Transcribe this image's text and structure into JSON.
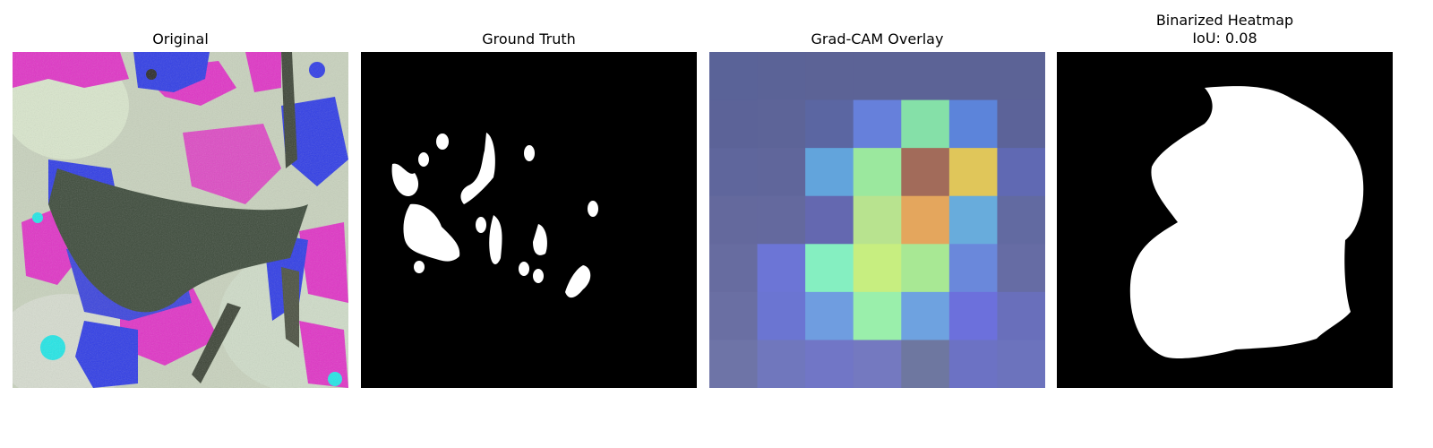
{
  "panels": [
    {
      "title": "Original",
      "icon": "original-image"
    },
    {
      "title": "Ground Truth",
      "icon": "ground-truth-mask"
    },
    {
      "title": "Grad-CAM Overlay",
      "icon": "gradcam-heatmap"
    },
    {
      "title": "Binarized Heatmap",
      "subtitle": "IoU: 0.08",
      "icon": "binarized-mask"
    }
  ],
  "gradcam": {
    "grid_size": 7,
    "cells": [
      [
        "#5a6398",
        "#5b6397",
        "#5c6396",
        "#5c6396",
        "#5c6396",
        "#5c6396",
        "#5c6396"
      ],
      [
        "#5c6398",
        "#5d6498",
        "#5b66a2",
        "#6680db",
        "#85e0a8",
        "#5c84da",
        "#5c6399"
      ],
      [
        "#5f669c",
        "#60669b",
        "#62a4dc",
        "#9be89e",
        "#a26b5a",
        "#e0c65a",
        "#6069b3"
      ],
      [
        "#64699d",
        "#64699e",
        "#6468b0",
        "#b8e38f",
        "#e4a65d",
        "#68acdc",
        "#626aa1"
      ],
      [
        "#676ca0",
        "#6c75d6",
        "#85efc1",
        "#c7ee80",
        "#a8e894",
        "#6a88db",
        "#666ca4"
      ],
      [
        "#6a6fa3",
        "#6b75d2",
        "#6f9de0",
        "#9aefab",
        "#6ea2e0",
        "#6c70dc",
        "#696fbb"
      ],
      [
        "#6e74a7",
        "#7077bd",
        "#7176c6",
        "#7479c0",
        "#6e77a0",
        "#6c72c4",
        "#6c73bd"
      ]
    ]
  }
}
